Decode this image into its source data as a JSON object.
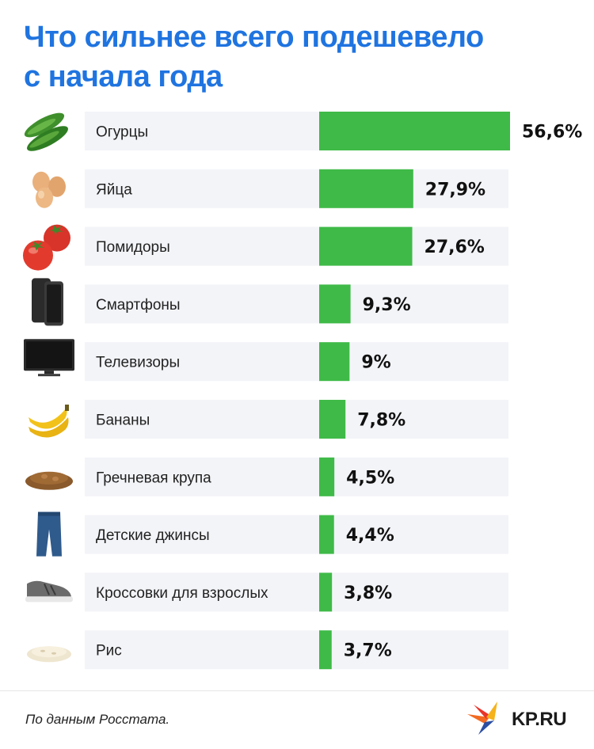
{
  "title": {
    "line1": "Что сильнее всего подешевело",
    "line2": "с начала года"
  },
  "colors": {
    "title": "#1f74e0",
    "bar": "#3fba48",
    "row_bg": "#f3f4f8"
  },
  "chart_data": {
    "type": "bar",
    "orientation": "horizontal",
    "categories": [
      "Огурцы",
      "Яйца",
      "Помидоры",
      "Смартфоны",
      "Телевизоры",
      "Бананы",
      "Гречневая крупа",
      "Детские джинсы",
      "Кроссовки для взрослых",
      "Рис"
    ],
    "values": [
      56.6,
      27.9,
      27.6,
      9.3,
      9,
      7.8,
      4.5,
      4.4,
      3.8,
      3.7
    ],
    "value_labels": [
      "56,6%",
      "27,9%",
      "27,6%",
      "9,3%",
      "9%",
      "7,8%",
      "4,5%",
      "4,4%",
      "3,8%",
      "3,7%"
    ],
    "icons": [
      "cucumber-icon",
      "eggs-icon",
      "tomato-icon",
      "smartphone-icon",
      "tv-icon",
      "banana-icon",
      "buckwheat-icon",
      "jeans-icon",
      "sneaker-icon",
      "rice-icon"
    ],
    "unit": "%",
    "grid": false,
    "legend": "none"
  },
  "footer": {
    "source": "По данным Росстата.",
    "logo": "KP.RU"
  }
}
